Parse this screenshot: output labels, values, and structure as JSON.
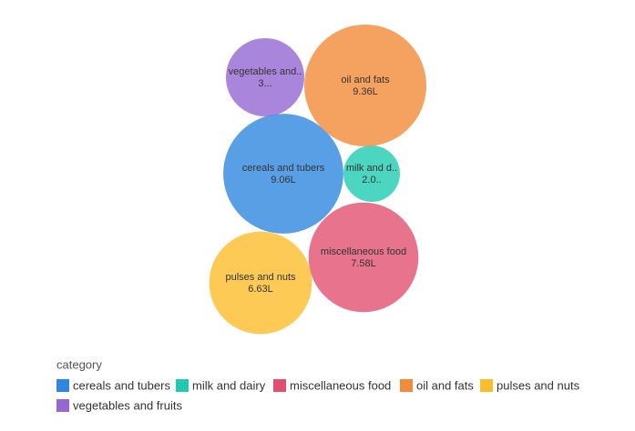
{
  "chart_data": {
    "type": "bubble",
    "legend_title": "category",
    "categories": [
      "cereals and tubers",
      "milk and dairy",
      "miscellaneous food",
      "oil and fats",
      "pulses and nuts",
      "vegetables and fruits"
    ],
    "bubble_labels": [
      "cereals and tubers",
      "milk and d..",
      "miscellaneous food",
      "oil and fats",
      "pulses and nuts",
      "vegetables and.."
    ],
    "values": [
      9.06,
      2.0,
      7.58,
      9.36,
      6.63,
      3.86
    ],
    "value_labels": [
      "9.06L",
      "2.0..",
      "7.58L",
      "9.36L",
      "6.63L",
      "3..."
    ],
    "colors": [
      "#2f87e0",
      "#1fcab0",
      "#e2506f",
      "#f28b3a",
      "#fcbd2c",
      "#9467d3"
    ],
    "legend": "bottom-left"
  }
}
